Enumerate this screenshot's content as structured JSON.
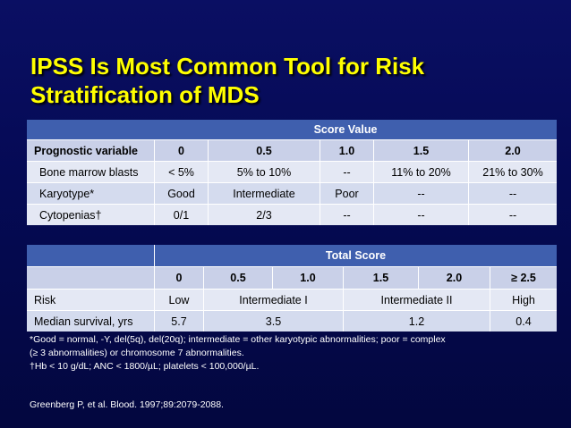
{
  "title_line1": "IPSS Is Most Common Tool for Risk",
  "title_line2": "Stratification of MDS",
  "table1": {
    "group_header": "Score Value",
    "headers": [
      "Prognostic variable",
      "0",
      "0.5",
      "1.0",
      "1.5",
      "2.0"
    ],
    "rows": [
      [
        "Bone marrow blasts",
        "< 5%",
        "5% to 10%",
        "--",
        "11% to 20%",
        "21% to 30%"
      ],
      [
        "Karyotype*",
        "Good",
        "Intermediate",
        "Poor",
        "--",
        "--"
      ],
      [
        "Cytopenias†",
        "0/1",
        "2/3",
        "--",
        "--",
        "--"
      ]
    ]
  },
  "table2": {
    "group_header": "Total Score",
    "headers": [
      "0",
      "0.5",
      "1.0",
      "1.5",
      "2.0",
      "≥ 2.5"
    ],
    "risk": {
      "label": "Risk",
      "values": [
        "Low",
        "Intermediate I",
        "Intermediate II",
        "High"
      ]
    },
    "survival": {
      "label": "Median survival, yrs",
      "values": [
        "5.7",
        "3.5",
        "1.2",
        "0.4"
      ]
    }
  },
  "footnote_line1": "*Good = normal, -Y, del(5q), del(20q); intermediate = other karyotypic abnormalities; poor = complex",
  "footnote_line2": "(≥ 3 abnormalities) or chromosome 7 abnormalities.",
  "footnote_line3": "†Hb < 10 g/dL; ANC < 1800/µL; platelets < 100,000/µL.",
  "reference": "Greenberg P, et al. Blood. 1997;89:2079-2088."
}
